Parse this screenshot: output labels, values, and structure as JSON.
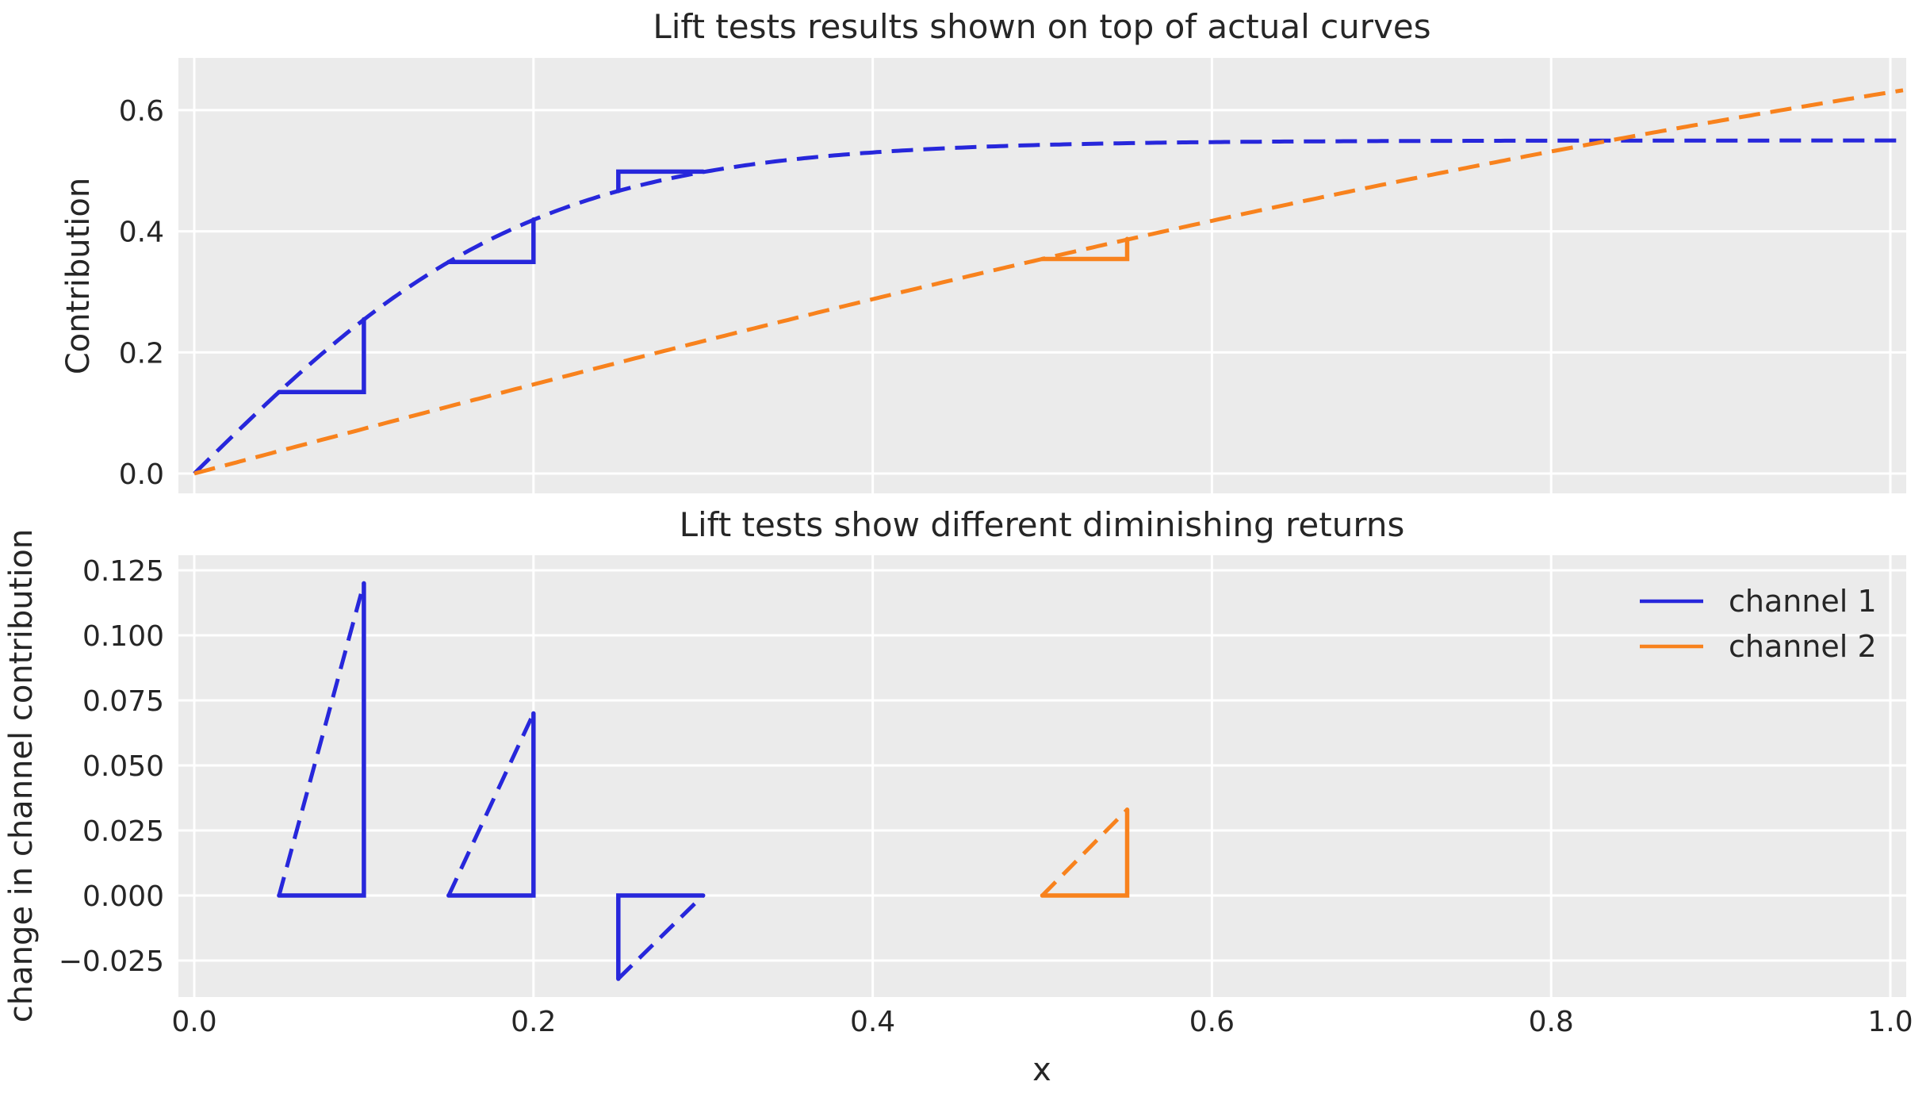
{
  "figure": {
    "background": "#ffffff",
    "panel_background": "#ebebeb",
    "grid_color": "#ffffff",
    "text_color": "#262626",
    "channel1_color": "#2727db",
    "channel2_color": "#f8821d"
  },
  "legend": {
    "position": "upper right of bottom plot",
    "entries": [
      {
        "label": "channel 1",
        "color": "#2727db"
      },
      {
        "label": "channel 2",
        "color": "#f8821d"
      }
    ]
  },
  "chart_data": [
    {
      "id": "top",
      "type": "line",
      "title": "Lift tests results shown on top of actual curves",
      "xlabel": "",
      "ylabel": "Contribution",
      "grid": true,
      "xlim": [
        -0.0094,
        1.0094
      ],
      "ylim": [
        -0.033,
        0.686
      ],
      "xticks": {
        "values": [
          0.0,
          0.2,
          0.4,
          0.6,
          0.8,
          1.0
        ],
        "labels": [
          "0.0",
          "0.2",
          "0.4",
          "0.6",
          "0.8",
          "1.0"
        ],
        "labels_visible": false
      },
      "yticks": {
        "values": [
          0.0,
          0.2,
          0.4,
          0.6
        ],
        "labels": [
          "0.0",
          "0.2",
          "0.4",
          "0.6"
        ]
      },
      "series": [
        {
          "name": "channel 1",
          "color": "#2727db",
          "linestyle": "dashed",
          "model": {
            "type": "scaled_tanh",
            "formula": "y = 0.55 * tanh(x / 0.2)",
            "amplitude": 0.55,
            "tau": 0.2
          },
          "samples": {
            "x": [
              0.0,
              0.05,
              0.1,
              0.15,
              0.2,
              0.25,
              0.3,
              0.35,
              0.4,
              0.45,
              0.5,
              0.55,
              0.6,
              0.65,
              0.7,
              0.75,
              0.8,
              0.85,
              0.9,
              0.95,
              1.0
            ],
            "y": [
              0.0,
              0.1347,
              0.2542,
              0.3493,
              0.4189,
              0.4666,
              0.4978,
              0.5178,
              0.5302,
              0.5379,
              0.5426,
              0.5455,
              0.5473,
              0.5483,
              0.549,
              0.5494,
              0.5496,
              0.5498,
              0.5499,
              0.5499,
              0.55
            ]
          }
        },
        {
          "name": "channel 2",
          "color": "#f8821d",
          "linestyle": "dashed",
          "model": {
            "type": "scaled_tanh",
            "formula": "y = 1.0 * tanh(x / 1.35)",
            "amplitude": 1.0,
            "tau": 1.35
          },
          "samples": {
            "x": [
              0.0,
              0.05,
              0.1,
              0.15,
              0.2,
              0.25,
              0.3,
              0.35,
              0.4,
              0.45,
              0.5,
              0.55,
              0.6,
              0.65,
              0.7,
              0.75,
              0.8,
              0.85,
              0.9,
              0.95,
              1.0
            ],
            "y": [
              0.0,
              0.037,
              0.0739,
              0.1107,
              0.1471,
              0.1831,
              0.2186,
              0.2536,
              0.2879,
              0.3215,
              0.3543,
              0.3863,
              0.4173,
              0.4474,
              0.4766,
              0.5047,
              0.5318,
              0.5578,
              0.5828,
              0.6067,
              0.6296
            ]
          }
        }
      ],
      "lift_tests": [
        {
          "channel": "channel 1",
          "x_start": 0.05,
          "x_end": 0.1,
          "lift": 0.12
        },
        {
          "channel": "channel 1",
          "x_start": 0.15,
          "x_end": 0.2,
          "lift": 0.07
        },
        {
          "channel": "channel 1",
          "x_start": 0.25,
          "x_end": 0.3,
          "lift": -0.032
        },
        {
          "channel": "channel 2",
          "x_start": 0.5,
          "x_end": 0.55,
          "lift": 0.033
        }
      ]
    },
    {
      "id": "bottom",
      "type": "line",
      "title": "Lift tests show different diminishing returns",
      "xlabel": "x",
      "ylabel": "change in channel contribution",
      "grid": true,
      "xlim": [
        -0.0094,
        1.0094
      ],
      "ylim": [
        -0.039,
        0.131
      ],
      "xticks": {
        "values": [
          0.0,
          0.2,
          0.4,
          0.6,
          0.8,
          1.0
        ],
        "labels": [
          "0.0",
          "0.2",
          "0.4",
          "0.6",
          "0.8",
          "1.0"
        ],
        "labels_visible": true
      },
      "yticks": {
        "values": [
          0.125,
          0.1,
          0.075,
          0.05,
          0.025,
          0.0,
          -0.025
        ],
        "labels": [
          "0.125",
          "0.100",
          "0.075",
          "0.050",
          "0.025",
          "0.000",
          "−0.025"
        ]
      },
      "triangles": [
        {
          "channel": "channel 1",
          "x_start": 0.05,
          "x_end": 0.1,
          "delta": 0.12
        },
        {
          "channel": "channel 1",
          "x_start": 0.15,
          "x_end": 0.2,
          "delta": 0.07
        },
        {
          "channel": "channel 1",
          "x_start": 0.25,
          "x_end": 0.3,
          "delta": -0.032
        },
        {
          "channel": "channel 2",
          "x_start": 0.5,
          "x_end": 0.55,
          "delta": 0.033
        }
      ]
    }
  ]
}
